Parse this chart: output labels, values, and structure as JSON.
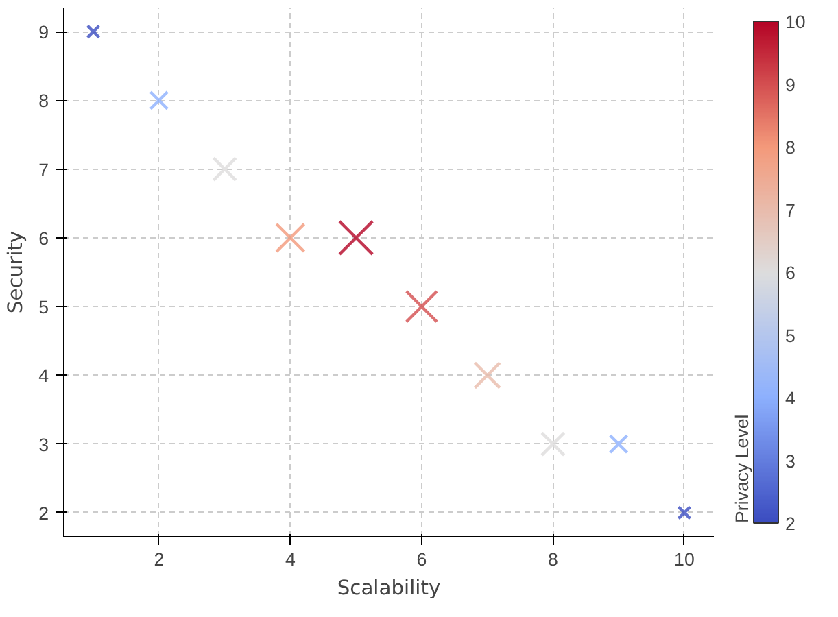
{
  "chart_data": {
    "type": "scatter",
    "xlabel": "Scalability",
    "ylabel": "Security",
    "clabel": "Privacy Level",
    "x": [
      1,
      2,
      3,
      4,
      5,
      6,
      7,
      8,
      9,
      10
    ],
    "values": [
      9,
      8,
      7,
      6,
      6,
      5,
      4,
      3,
      3,
      2
    ],
    "cvalues": [
      2,
      4,
      6,
      8,
      10,
      9,
      7,
      6,
      4,
      2
    ],
    "marker": "cross",
    "grid": true,
    "xlim": [
      0.55,
      10.45
    ],
    "xticks": [
      2,
      4,
      6,
      8,
      10
    ],
    "ylim": [
      1.65,
      9.35
    ],
    "yticks": [
      2,
      3,
      4,
      5,
      6,
      7,
      8,
      9
    ],
    "clim": [
      2,
      10
    ],
    "cticks": [
      2,
      3,
      4,
      5,
      6,
      7,
      8,
      9,
      10
    ]
  }
}
